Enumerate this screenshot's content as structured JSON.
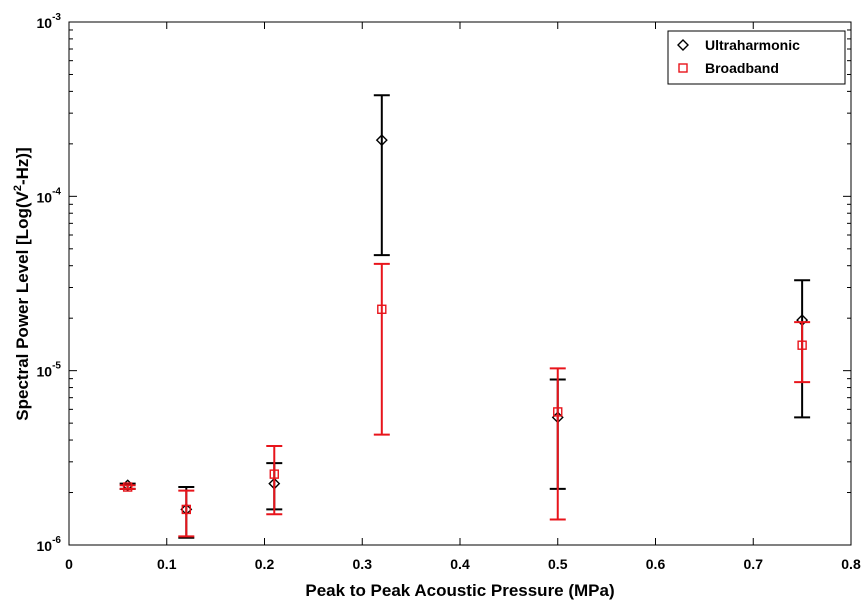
{
  "chart_data": {
    "type": "scatter",
    "title": "",
    "xlabel": "Peak to Peak Acoustic Pressure (MPa)",
    "ylabel_parts": [
      "Spectral Power Level [Log(V",
      "2",
      "-Hz)]"
    ],
    "xlim": [
      0,
      0.8
    ],
    "ylim": [
      1e-06,
      0.001
    ],
    "yscale": "log",
    "xticks": [
      0,
      0.1,
      0.2,
      0.3,
      0.4,
      0.5,
      0.6,
      0.7,
      0.8
    ],
    "xtick_labels": [
      "0",
      "0.1",
      "0.2",
      "0.3",
      "0.4",
      "0.5",
      "0.6",
      "0.7",
      "0.8"
    ],
    "yticks": [
      {
        "value": 1e-06,
        "base": "10",
        "exp": "-6"
      },
      {
        "value": 1e-05,
        "base": "10",
        "exp": "-5"
      },
      {
        "value": 0.0001,
        "base": "10",
        "exp": "-4"
      },
      {
        "value": 0.001,
        "base": "10",
        "exp": "-3"
      }
    ],
    "grid": false,
    "legend_position": "top-right",
    "series": [
      {
        "name": "Ultraharmonic",
        "color": "#000000",
        "marker": "diamond",
        "x": [
          0.06,
          0.12,
          0.21,
          0.32,
          0.5,
          0.75
        ],
        "y": [
          2.2e-06,
          1.6e-06,
          2.25e-06,
          0.00021,
          5.4e-06,
          1.95e-05
        ],
        "y_low": [
          2.1e-06,
          1.1e-06,
          1.6e-06,
          4.6e-05,
          2.1e-06,
          5.4e-06
        ],
        "y_high": [
          2.25e-06,
          2.15e-06,
          2.95e-06,
          0.00038,
          8.9e-06,
          3.3e-05
        ]
      },
      {
        "name": "Broadband",
        "color": "#e8141b",
        "marker": "square",
        "x": [
          0.06,
          0.12,
          0.21,
          0.32,
          0.5,
          0.75
        ],
        "y": [
          2.15e-06,
          1.6e-06,
          2.55e-06,
          2.25e-05,
          5.8e-06,
          1.4e-05
        ],
        "y_low": [
          2.1e-06,
          1.12e-06,
          1.5e-06,
          4.3e-06,
          1.4e-06,
          8.6e-06
        ],
        "y_high": [
          2.2e-06,
          2.05e-06,
          3.7e-06,
          4.1e-05,
          1.03e-05,
          1.9e-05
        ]
      }
    ]
  }
}
